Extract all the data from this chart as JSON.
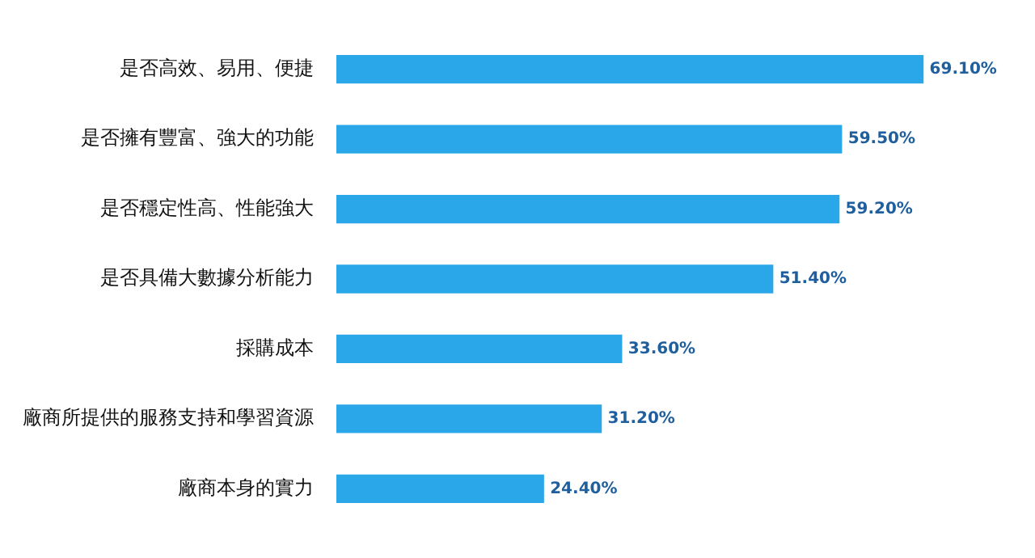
{
  "chart_data": {
    "type": "bar",
    "orientation": "horizontal",
    "categories": [
      "是否高效、易用、便捷",
      "是否擁有豐富、強大的功能",
      "是否穩定性高、性能強大",
      "是否具備大數據分析能力",
      "採購成本",
      "廠商所提供的服務支持和學習資源",
      "廠商本身的實力"
    ],
    "values": [
      69.1,
      59.5,
      59.2,
      51.4,
      33.6,
      31.2,
      24.4
    ],
    "value_labels": [
      "69.10%",
      "59.50%",
      "59.20%",
      "51.40%",
      "33.60%",
      "31.20%",
      "24.40%"
    ],
    "color": "#2aa7e8",
    "legend": false
  }
}
